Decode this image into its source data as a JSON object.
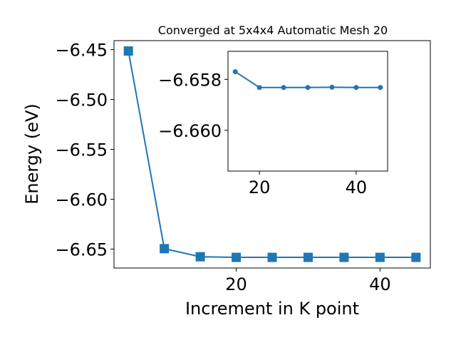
{
  "chart_data": [
    {
      "type": "line",
      "title": "Converged at 5x4x4 Automatic Mesh 20",
      "xlabel": "Increment in K point",
      "ylabel": "Energy (eV)",
      "xlim": [
        3.0,
        47.0
      ],
      "ylim": [
        -6.669,
        -6.441
      ],
      "xticks": [
        20,
        40
      ],
      "xtick_labels": [
        "20",
        "40"
      ],
      "yticks": [
        -6.45,
        -6.5,
        -6.55,
        -6.6,
        -6.65
      ],
      "ytick_labels": [
        "−6.45",
        "−6.50",
        "−6.55",
        "−6.60",
        "−6.65"
      ],
      "grid": false,
      "marker": "square",
      "color": "#1f77b4",
      "series": [
        {
          "x": [
            5,
            10,
            15,
            20,
            25,
            30,
            35,
            40,
            45
          ],
          "y": [
            -6.4514,
            -6.6496,
            -6.6577,
            -6.65832,
            -6.65832,
            -6.65832,
            -6.65831,
            -6.65832,
            -6.65832
          ]
        }
      ]
    },
    {
      "type": "line",
      "title": "",
      "xlabel": "",
      "ylabel": "",
      "xlim": [
        13.5,
        46.5
      ],
      "ylim": [
        -6.6616,
        -6.6569
      ],
      "xticks": [
        20,
        40
      ],
      "xtick_labels": [
        "20",
        "40"
      ],
      "yticks": [
        -6.66,
        -6.658
      ],
      "ytick_labels": [
        "−6.660",
        "−6.658"
      ],
      "grid": false,
      "marker": "circle",
      "color": "#1f77b4",
      "series": [
        {
          "x": [
            15,
            20,
            25,
            30,
            35,
            40,
            45
          ],
          "y": [
            -6.6577,
            -6.65832,
            -6.65832,
            -6.65832,
            -6.65831,
            -6.65832,
            -6.65832
          ]
        }
      ]
    }
  ]
}
